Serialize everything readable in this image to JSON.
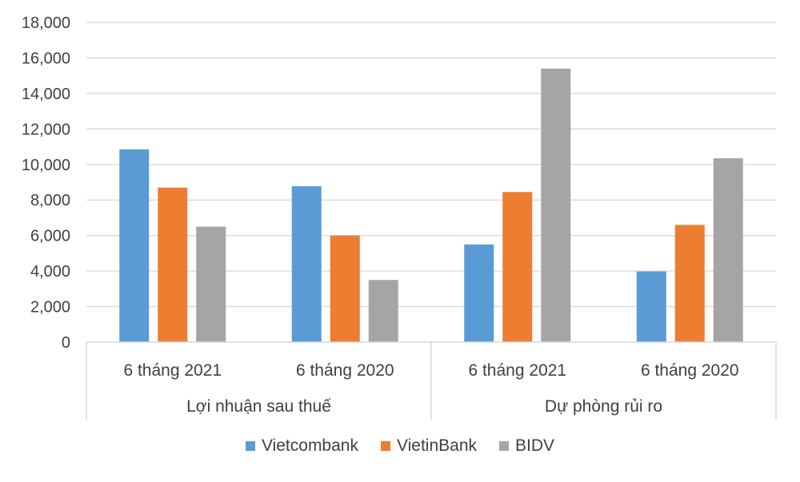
{
  "chart_data": {
    "type": "bar",
    "ylim": [
      0,
      18000
    ],
    "yticks": [
      0,
      2000,
      4000,
      6000,
      8000,
      10000,
      12000,
      14000,
      16000,
      18000
    ],
    "ytick_labels": [
      "0",
      "2,000",
      "4,000",
      "6,000",
      "8,000",
      "10,000",
      "12,000",
      "14,000",
      "16,000",
      "18,000"
    ],
    "groups": [
      {
        "label": "Lợi nhuận sau thuế",
        "categories": [
          "6 tháng 2021",
          "6 tháng 2020"
        ]
      },
      {
        "label": "Dự phòng rủi ro",
        "categories": [
          "6 tháng 2021",
          "6 tháng 2020"
        ]
      }
    ],
    "series": [
      {
        "name": "Vietcombank",
        "color": "#5b9bd5",
        "values": [
          10850,
          8780,
          5500,
          3980
        ]
      },
      {
        "name": "VietinBank",
        "color": "#ed7d31",
        "values": [
          8700,
          6000,
          8450,
          6600
        ]
      },
      {
        "name": "BIDV",
        "color": "#a5a5a5",
        "values": [
          6500,
          3500,
          15400,
          10350
        ]
      }
    ],
    "grid": true,
    "legend_position": "bottom"
  }
}
